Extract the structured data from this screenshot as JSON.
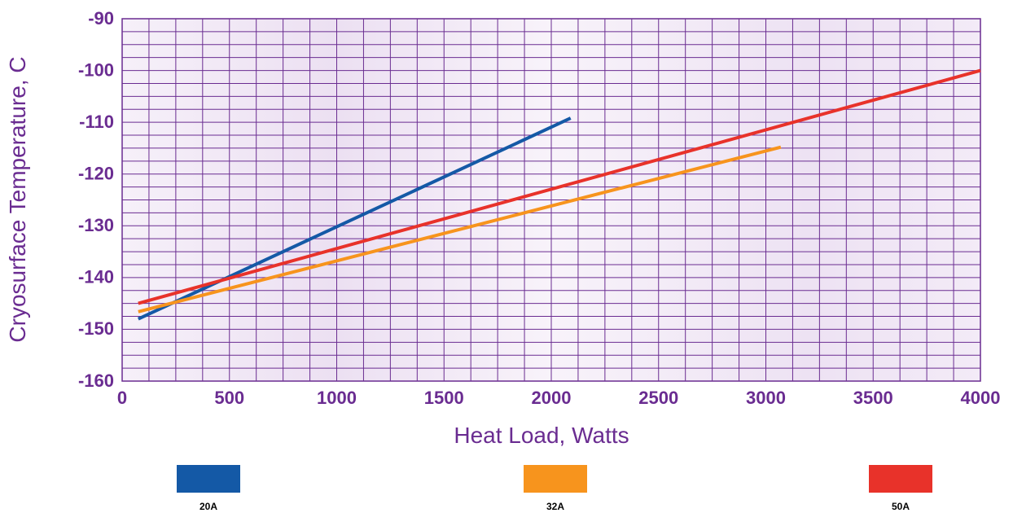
{
  "chart_data": {
    "type": "line",
    "title": "",
    "xlabel": "Heat Load, Watts",
    "ylabel": "Cryosurface Temperature, C",
    "xlim": [
      0,
      4000
    ],
    "ylim": [
      -160,
      -90
    ],
    "xticks": [
      "0",
      "500",
      "1000",
      "1500",
      "2000",
      "2500",
      "3000",
      "3500",
      "4000"
    ],
    "yticks": [
      "-90",
      "-100",
      "-110",
      "-120",
      "-130",
      "-140",
      "-150",
      "-160"
    ],
    "grid": true,
    "legend_position": "bottom",
    "series": [
      {
        "name": "20A",
        "color": "#1459a6",
        "points": [
          [
            75,
            -148
          ],
          [
            2090,
            -109.2
          ]
        ]
      },
      {
        "name": "32A",
        "color": "#f7941d",
        "points": [
          [
            75,
            -146.6
          ],
          [
            3070,
            -114.8
          ]
        ]
      },
      {
        "name": "50A",
        "color": "#e8322a",
        "points": [
          [
            75,
            -145
          ],
          [
            4000,
            -100
          ]
        ]
      }
    ]
  },
  "colors": {
    "axis_text": "#6a2c91",
    "grid": "#6a2c91",
    "plot_background": "#f1e7f5"
  }
}
